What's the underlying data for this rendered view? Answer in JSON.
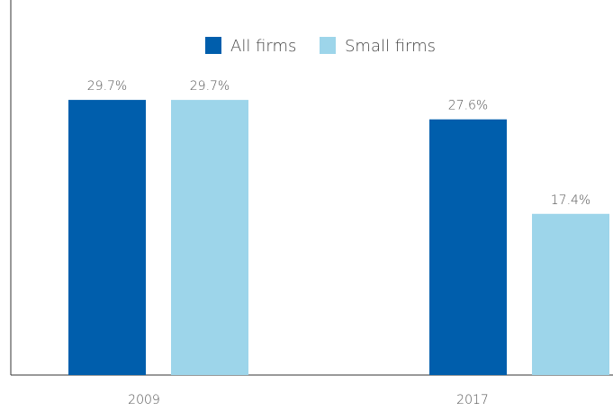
{
  "chart_data": {
    "type": "bar",
    "categories": [
      "2009",
      "2017"
    ],
    "series": [
      {
        "name": "All firms",
        "color": "#005eac",
        "values": [
          29.7,
          27.6
        ],
        "value_labels": [
          "29.7%",
          "27.6%"
        ]
      },
      {
        "name": "Small firms",
        "color": "#9dd5ea",
        "values": [
          29.7,
          17.4
        ],
        "value_labels": [
          "29.7%",
          "17.4%"
        ]
      }
    ],
    "ylim": [
      0,
      40
    ],
    "grid": false
  }
}
